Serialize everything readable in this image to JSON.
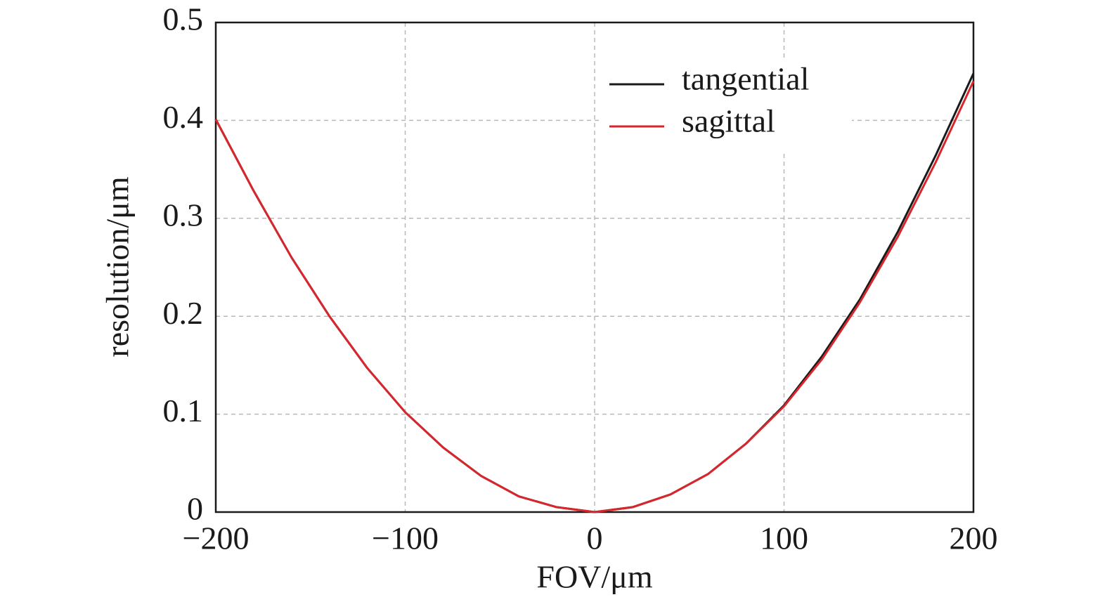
{
  "chart_data": {
    "type": "line",
    "x_label": "FOV/μm",
    "y_label": "resolution/μm",
    "x": [
      -200,
      -180,
      -160,
      -140,
      -120,
      -100,
      -80,
      -60,
      -40,
      -20,
      0,
      20,
      40,
      60,
      80,
      100,
      120,
      140,
      160,
      180,
      200
    ],
    "series": [
      {
        "name": "tangential",
        "color": "#1a1a1a",
        "values": [
          0.401,
          0.328,
          0.26,
          0.2,
          0.147,
          0.102,
          0.066,
          0.037,
          0.016,
          0.005,
          0,
          0.005,
          0.018,
          0.039,
          0.07,
          0.109,
          0.159,
          0.217,
          0.286,
          0.364,
          0.448
        ]
      },
      {
        "name": "sagittal",
        "color": "#d9262c",
        "values": [
          0.401,
          0.328,
          0.26,
          0.2,
          0.147,
          0.102,
          0.066,
          0.037,
          0.016,
          0.005,
          0,
          0.005,
          0.018,
          0.039,
          0.07,
          0.108,
          0.156,
          0.214,
          0.281,
          0.357,
          0.44
        ]
      }
    ],
    "xlim": [
      -200,
      200
    ],
    "xticks": [
      {
        "value": -200,
        "label": "−200"
      },
      {
        "value": -100,
        "label": "−100"
      },
      0,
      100,
      200
    ],
    "ylim": [
      0,
      0.5
    ],
    "yticks": [
      0,
      0.1,
      0.2,
      0.3,
      0.4,
      0.5
    ],
    "grid": true,
    "legend": "upper right"
  }
}
